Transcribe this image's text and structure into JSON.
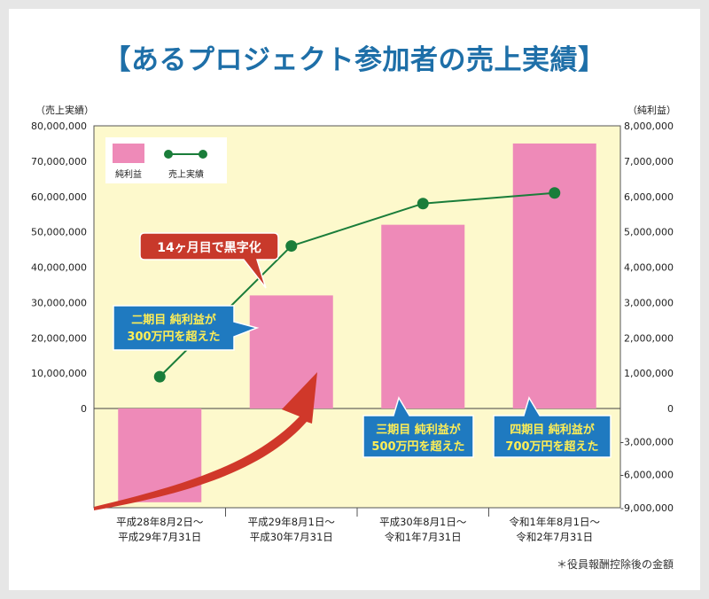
{
  "title": "【あるプロジェクト参加者の売上実績】",
  "footnote": "＊役員報酬控除後の金額",
  "colors": {
    "bar": "#ee8ab8",
    "line": "#1a7d3a",
    "plot_bg": "#fdf9cc",
    "title": "#1e6fa8",
    "arrow": "#d0382a",
    "callout_blue": "#1f7ac0",
    "callout_text": "#ffee55"
  },
  "chart_data": {
    "type": "bar+line",
    "title": "【あるプロジェクト参加者の売上実績】",
    "categories": [
      [
        "平成28年8月2日〜",
        "平成29年7月31日"
      ],
      [
        "平成29年8月1日〜",
        "平成30年7月31日"
      ],
      [
        "平成30年8月1日〜",
        "令和1年7月31日"
      ],
      [
        "令和1年年8月1日〜",
        "令和2年7月31日"
      ]
    ],
    "left_axis": {
      "label": "（売上実績）",
      "ticks": [
        "80,000,000",
        "70,000,000",
        "60,000,000",
        "50,000,000",
        "40,000,000",
        "30,000,000",
        "20,000,000",
        "10,000,000",
        "0"
      ]
    },
    "right_axis": {
      "label": "（純利益）",
      "ticks": [
        "8,000,000",
        "7,000,000",
        "6,000,000",
        "5,000,000",
        "4,000,000",
        "3,000,000",
        "2,000,000",
        "1,000,000",
        "0",
        "-3,000,000",
        "-6,000,000",
        "-9,000,000"
      ]
    },
    "series": [
      {
        "name": "純利益",
        "kind": "bar",
        "axis": "right",
        "values": [
          -8500000,
          3200000,
          5200000,
          7500000
        ]
      },
      {
        "name": "売上実績",
        "kind": "line",
        "axis": "left",
        "values": [
          9000000,
          46000000,
          58000000,
          61000000
        ]
      }
    ],
    "legend_position": "top-left",
    "grid": false,
    "annotations": {
      "red": "14ヶ月目で黒字化",
      "blue": [
        [
          "二期目 純利益が",
          "300万円を超えた"
        ],
        [
          "三期目 純利益が",
          "500万円を超えた"
        ],
        [
          "四期目 純利益が",
          "700万円を超えた"
        ]
      ]
    }
  }
}
